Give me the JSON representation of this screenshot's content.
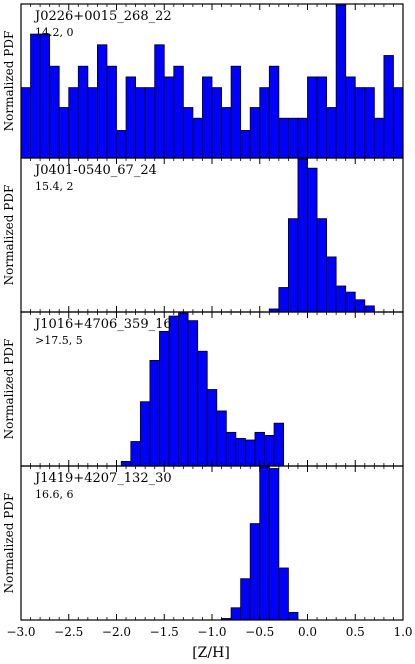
{
  "figure": {
    "xlabel": "[Z/H]",
    "ylabel": "Normalized PDF",
    "xlim": [
      -3.0,
      1.0
    ],
    "x_ticks": [
      -3.0,
      -2.5,
      -2.0,
      -1.5,
      -1.0,
      -0.5,
      0.0,
      0.5,
      1.0
    ],
    "x_tick_labels": [
      "−3.0",
      "−2.5",
      "−2.0",
      "−1.5",
      "−1.0",
      "−0.5",
      "0.0",
      "0.5",
      "1.0"
    ],
    "bar_fill": "#0000ff",
    "bar_edge": "#000000"
  },
  "chart_data": [
    {
      "type": "bar",
      "title": "J0226+0015_268_22",
      "subtitle": "14.2, 0",
      "bin_edges": [
        -3.0,
        -2.9,
        -2.8,
        -2.7,
        -2.6,
        -2.5,
        -2.4,
        -2.3,
        -2.2,
        -2.1,
        -2.0,
        -1.9,
        -1.8,
        -1.7,
        -1.6,
        -1.5,
        -1.4,
        -1.3,
        -1.2,
        -1.1,
        -1.0,
        -0.9,
        -0.8,
        -0.7,
        -0.6,
        -0.5,
        -0.4,
        -0.3,
        -0.2,
        -0.1,
        0.0,
        0.1,
        0.2,
        0.3,
        0.4,
        0.5,
        0.6,
        0.7,
        0.8,
        0.9,
        1.0
      ],
      "values": [
        0.46,
        0.81,
        0.81,
        0.6,
        0.33,
        0.46,
        0.6,
        0.46,
        0.74,
        0.6,
        0.18,
        0.53,
        0.46,
        0.46,
        0.74,
        0.53,
        0.6,
        0.33,
        0.26,
        0.53,
        0.46,
        0.33,
        0.6,
        0.18,
        0.33,
        0.46,
        0.6,
        0.26,
        0.26,
        0.26,
        0.53,
        0.53,
        0.33,
        1.0,
        0.53,
        0.46,
        0.46,
        0.26,
        0.67,
        0.46
      ],
      "ylim": [
        0,
        1.0
      ]
    },
    {
      "type": "bar",
      "title": "J0401-0540_67_24",
      "subtitle": "15.4, 2",
      "bin_edges": [
        -0.4,
        -0.3,
        -0.2,
        -0.1,
        0.0,
        0.1,
        0.2,
        0.3,
        0.4,
        0.5,
        0.6,
        0.7
      ],
      "values": [
        0.02,
        0.16,
        0.61,
        1.0,
        0.94,
        0.61,
        0.36,
        0.17,
        0.13,
        0.08,
        0.04
      ],
      "ylim": [
        0,
        1.0
      ]
    },
    {
      "type": "bar",
      "title": "J1016+4706_359_16",
      "subtitle": ">17.5, 5",
      "bin_edges": [
        -1.95,
        -1.85,
        -1.75,
        -1.65,
        -1.55,
        -1.45,
        -1.35,
        -1.25,
        -1.15,
        -1.05,
        -0.95,
        -0.85,
        -0.75,
        -0.65,
        -0.55,
        -0.45,
        -0.35,
        -0.25
      ],
      "values": [
        0.03,
        0.16,
        0.42,
        0.69,
        0.88,
        0.98,
        1.0,
        0.95,
        0.75,
        0.5,
        0.36,
        0.22,
        0.18,
        0.17,
        0.22,
        0.2,
        0.28
      ],
      "ylim": [
        0,
        1.0
      ]
    },
    {
      "type": "bar",
      "title": "J1419+4207_132_30",
      "subtitle": "16.6, 6",
      "bin_edges": [
        -0.9,
        -0.8,
        -0.7,
        -0.6,
        -0.5,
        -0.4,
        -0.3,
        -0.2,
        -0.1
      ],
      "values": [
        0.01,
        0.08,
        0.27,
        0.63,
        1.0,
        0.99,
        0.34,
        0.05
      ],
      "ylim": [
        0,
        1.0
      ]
    }
  ]
}
